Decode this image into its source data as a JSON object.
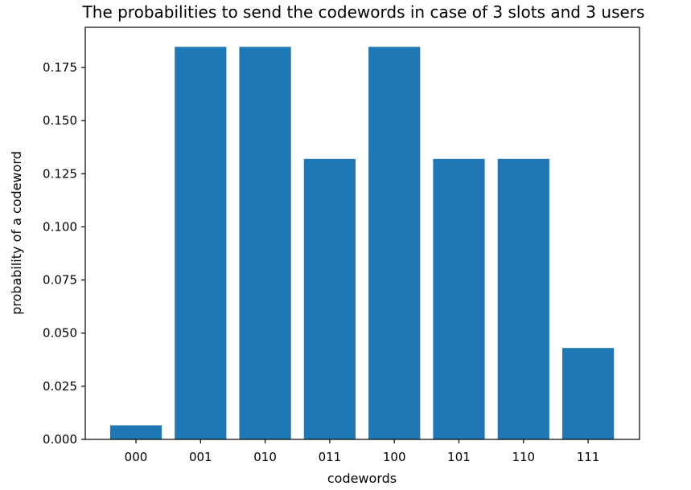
{
  "chart_data": {
    "type": "bar",
    "title": "The probabilities to send the codewords in case of 3 slots and 3 users",
    "xlabel": "codewords",
    "ylabel": "probability of a codeword",
    "categories": [
      "000",
      "001",
      "010",
      "011",
      "100",
      "101",
      "110",
      "111"
    ],
    "values": [
      0.0066,
      0.1847,
      0.1847,
      0.132,
      0.1847,
      0.132,
      0.132,
      0.043
    ],
    "ylim": [
      0,
      0.1939
    ],
    "yticks": [
      0.0,
      0.025,
      0.05,
      0.075,
      0.1,
      0.125,
      0.15,
      0.175
    ],
    "ytick_labels": [
      "0.000",
      "0.025",
      "0.050",
      "0.075",
      "0.100",
      "0.125",
      "0.150",
      "0.175"
    ],
    "bar_color": "#1f77b4",
    "grid": false,
    "legend": "none"
  }
}
